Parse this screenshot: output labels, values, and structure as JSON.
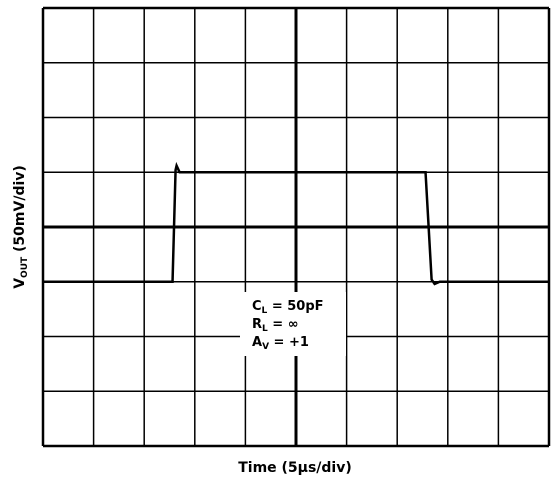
{
  "chart_data": {
    "type": "line",
    "xlabel": {
      "text": "Time (5µs/div)"
    },
    "ylabel": {
      "symbol": "V",
      "sub": "OUT",
      "text": " (50mV/div)"
    },
    "annotations": [
      {
        "symbol": "C",
        "sub": "L",
        "text": " = 50pF"
      },
      {
        "symbol": "R",
        "sub": "L",
        "text": " = ∞"
      },
      {
        "symbol": "A",
        "sub": "V",
        "text": " = +1"
      }
    ],
    "x": [
      0,
      12.8,
      13.1,
      13.2,
      13.5,
      37.8,
      38.4,
      38.7,
      39.2,
      50
    ],
    "series": [
      {
        "color": "#000000",
        "values": [
          -50,
          -50,
          52,
          56,
          50,
          50,
          -48,
          -52,
          -50,
          -50
        ]
      }
    ],
    "xlim": [
      0,
      50
    ],
    "ylim": [
      -200,
      200
    ],
    "xticks": [
      0,
      5,
      10,
      15,
      20,
      25,
      30,
      35,
      40,
      45,
      50
    ],
    "yticks": [
      -200,
      -150,
      -100,
      -50,
      0,
      50,
      100,
      150,
      200
    ],
    "grid": true
  }
}
